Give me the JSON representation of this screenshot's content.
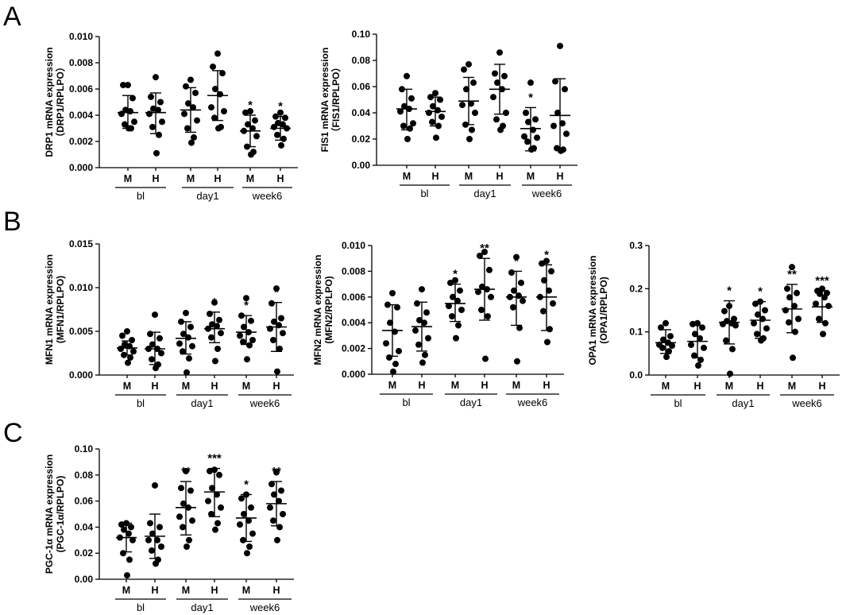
{
  "panel_letters": [
    "A",
    "B",
    "C"
  ],
  "chart_data": [
    {
      "id": "drp1",
      "panel": "A",
      "type": "scatter",
      "ylabel": [
        "DRP1 mRNA expression",
        "（DRP1/RPLPO）"
      ],
      "ylim": [
        0,
        0.01
      ],
      "yticks": [
        "0.000",
        "0.002",
        "0.004",
        "0.006",
        "0.008",
        "0.010"
      ],
      "categories": [
        "M",
        "H",
        "M",
        "H",
        "M",
        "H"
      ],
      "groups": [
        "bl",
        "day1",
        "week6"
      ],
      "means": [
        0.0042,
        0.0042,
        0.0044,
        0.0055,
        0.0028,
        0.003
      ],
      "sd_low": [
        0.003,
        0.0026,
        0.0027,
        0.0036,
        0.0016,
        0.0021
      ],
      "sd_high": [
        0.0055,
        0.0057,
        0.0061,
        0.0074,
        0.004,
        0.0039
      ],
      "significance": [
        "",
        "",
        "",
        "",
        "*",
        "*"
      ],
      "points": [
        [
          0.0063,
          0.0063,
          0.0053,
          0.0044,
          0.0043,
          0.0041,
          0.0035,
          0.0033,
          0.003,
          0.003
        ],
        [
          0.0069,
          0.0054,
          0.005,
          0.0045,
          0.0044,
          0.0041,
          0.0035,
          0.0031,
          0.0025,
          0.0011
        ],
        [
          0.0067,
          0.0062,
          0.0057,
          0.0049,
          0.0046,
          0.0041,
          0.0036,
          0.003,
          0.0023,
          0.0019
        ],
        [
          0.0087,
          0.0077,
          0.0072,
          0.006,
          0.0056,
          0.0046,
          0.0043,
          0.0038,
          0.0031,
          0.003
        ],
        [
          0.0043,
          0.0042,
          0.0036,
          0.0033,
          0.003,
          0.0028,
          0.0024,
          0.0016,
          0.0012,
          0.001
        ],
        [
          0.0042,
          0.0039,
          0.0038,
          0.0034,
          0.0033,
          0.0031,
          0.003,
          0.0025,
          0.0022,
          0.0017
        ]
      ]
    },
    {
      "id": "fis1",
      "panel": "A",
      "type": "scatter",
      "ylabel": [
        "FIS1 mRNA expression",
        "（FIS1/RPLPO）"
      ],
      "ylim": [
        0,
        0.1
      ],
      "yticks": [
        "0.00",
        "0.02",
        "0.04",
        "0.06",
        "0.08",
        "0.10"
      ],
      "categories": [
        "M",
        "H",
        "M",
        "H",
        "M",
        "H"
      ],
      "groups": [
        "bl",
        "day1",
        "week6"
      ],
      "means": [
        0.043,
        0.041,
        0.049,
        0.058,
        0.028,
        0.038
      ],
      "sd_low": [
        0.027,
        0.03,
        0.031,
        0.039,
        0.011,
        0.012
      ],
      "sd_high": [
        0.058,
        0.052,
        0.067,
        0.077,
        0.044,
        0.066
      ],
      "significance": [
        "",
        "",
        "",
        "*",
        "*",
        ""
      ],
      "points": [
        [
          0.068,
          0.058,
          0.051,
          0.045,
          0.043,
          0.041,
          0.032,
          0.03,
          0.028,
          0.02
        ],
        [
          0.055,
          0.052,
          0.05,
          0.045,
          0.042,
          0.04,
          0.037,
          0.033,
          0.03,
          0.021
        ],
        [
          0.077,
          0.073,
          0.063,
          0.058,
          0.047,
          0.046,
          0.04,
          0.031,
          0.027,
          0.02
        ],
        [
          0.086,
          0.07,
          0.068,
          0.063,
          0.058,
          0.052,
          0.04,
          0.035,
          0.03,
          0.027
        ],
        [
          0.063,
          0.04,
          0.035,
          0.033,
          0.027,
          0.022,
          0.021,
          0.018,
          0.013,
          0.012
        ],
        [
          0.091,
          0.064,
          0.058,
          0.04,
          0.032,
          0.03,
          0.024,
          0.013,
          0.012,
          0.011
        ]
      ]
    },
    {
      "id": "mfn1",
      "panel": "B",
      "type": "scatter",
      "ylabel": [
        "MFN1 mRNA expression",
        "(MFN1/RPLPO)"
      ],
      "ylim": [
        0,
        0.015
      ],
      "yticks": [
        "0.000",
        "0.005",
        "0.010",
        "0.015"
      ],
      "categories": [
        "M",
        "H",
        "M",
        "H",
        "M",
        "H"
      ],
      "groups": [
        "bl",
        "day1",
        "week6"
      ],
      "means": [
        0.0031,
        0.003,
        0.0042,
        0.0053,
        0.0049,
        0.0055
      ],
      "sd_low": [
        0.0023,
        0.0012,
        0.0024,
        0.0037,
        0.0035,
        0.0027
      ],
      "sd_high": [
        0.0039,
        0.0049,
        0.0061,
        0.0072,
        0.0068,
        0.0083
      ],
      "significance": [
        "",
        "",
        "",
        "*",
        "*",
        "*"
      ],
      "points": [
        [
          0.005,
          0.0045,
          0.004,
          0.0035,
          0.0033,
          0.003,
          0.0027,
          0.0023,
          0.002,
          0.0014
        ],
        [
          0.0069,
          0.0047,
          0.0042,
          0.0035,
          0.003,
          0.003,
          0.0025,
          0.0018,
          0.0012,
          0.0008
        ],
        [
          0.0071,
          0.0061,
          0.0055,
          0.0047,
          0.0043,
          0.0036,
          0.0033,
          0.0027,
          0.0019,
          0.0003
        ],
        [
          0.0083,
          0.007,
          0.0063,
          0.0058,
          0.0056,
          0.0053,
          0.0048,
          0.0043,
          0.003,
          0.0016
        ],
        [
          0.0088,
          0.0068,
          0.0062,
          0.0055,
          0.0049,
          0.0045,
          0.004,
          0.0038,
          0.0034,
          0.0018
        ],
        [
          0.0099,
          0.0082,
          0.0065,
          0.0061,
          0.0057,
          0.0053,
          0.0048,
          0.004,
          0.003,
          0.0004
        ]
      ]
    },
    {
      "id": "mfn2",
      "panel": "B",
      "type": "scatter",
      "ylabel": [
        "MFN2 mRNA expression",
        "(MFN2/RPLPO)"
      ],
      "ylim": [
        0,
        0.01
      ],
      "yticks": [
        "0.000",
        "0.002",
        "0.004",
        "0.006",
        "0.008",
        "0.010"
      ],
      "categories": [
        "M",
        "H",
        "M",
        "H",
        "M",
        "H"
      ],
      "groups": [
        "bl",
        "day1",
        "week6"
      ],
      "means": [
        0.0034,
        0.0037,
        0.0055,
        0.0066,
        0.006,
        0.006
      ],
      "sd_low": [
        0.0014,
        0.0018,
        0.0041,
        0.0042,
        0.0038,
        0.0034
      ],
      "sd_high": [
        0.0054,
        0.0056,
        0.007,
        0.009,
        0.008,
        0.0085
      ],
      "significance": [
        "",
        "",
        "*",
        "**",
        "*",
        "*"
      ],
      "points": [
        [
          0.0063,
          0.0054,
          0.0052,
          0.004,
          0.0033,
          0.0024,
          0.0018,
          0.0013,
          0.0008,
          0.0002
        ],
        [
          0.0066,
          0.0055,
          0.0048,
          0.0042,
          0.004,
          0.0034,
          0.0028,
          0.0023,
          0.0015,
          0.0009
        ],
        [
          0.0073,
          0.0071,
          0.0065,
          0.006,
          0.0057,
          0.0053,
          0.005,
          0.0045,
          0.0038,
          0.0028
        ],
        [
          0.0095,
          0.0092,
          0.0081,
          0.0068,
          0.0066,
          0.0064,
          0.006,
          0.005,
          0.0045,
          0.0012
        ],
        [
          0.0091,
          0.0079,
          0.0071,
          0.0065,
          0.0061,
          0.006,
          0.0057,
          0.0052,
          0.0036,
          0.001
        ],
        [
          0.0088,
          0.0086,
          0.008,
          0.0073,
          0.0065,
          0.006,
          0.0055,
          0.0049,
          0.0035,
          0.0025
        ]
      ]
    },
    {
      "id": "opa1",
      "panel": "B",
      "type": "scatter",
      "ylabel": [
        "OPA1 mRNA expression",
        "(OPA1/RPLPO)"
      ],
      "ylim": [
        0,
        0.3
      ],
      "yticks": [
        "0.0",
        "0.1",
        "0.2",
        "0.3"
      ],
      "categories": [
        "M",
        "H",
        "M",
        "H",
        "M",
        "H"
      ],
      "groups": [
        "bl",
        "day1",
        "week6"
      ],
      "means": [
        0.075,
        0.078,
        0.122,
        0.127,
        0.153,
        0.158
      ],
      "sd_low": [
        0.05,
        0.04,
        0.072,
        0.085,
        0.098,
        0.122
      ],
      "sd_high": [
        0.105,
        0.115,
        0.172,
        0.17,
        0.21,
        0.195
      ],
      "significance": [
        "",
        "",
        "*",
        "*",
        "**",
        "***"
      ],
      "points": [
        [
          0.12,
          0.11,
          0.09,
          0.082,
          0.075,
          0.07,
          0.068,
          0.063,
          0.055,
          0.042
        ],
        [
          0.12,
          0.118,
          0.11,
          0.095,
          0.085,
          0.07,
          0.063,
          0.045,
          0.035,
          0.022
        ],
        [
          0.16,
          0.148,
          0.13,
          0.125,
          0.12,
          0.118,
          0.115,
          0.08,
          0.06,
          0.003
        ],
        [
          0.17,
          0.165,
          0.15,
          0.14,
          0.13,
          0.12,
          0.108,
          0.095,
          0.085,
          0.08
        ],
        [
          0.25,
          0.2,
          0.19,
          0.18,
          0.16,
          0.15,
          0.13,
          0.122,
          0.1,
          0.04
        ],
        [
          0.2,
          0.195,
          0.19,
          0.188,
          0.18,
          0.165,
          0.16,
          0.13,
          0.12,
          0.095
        ]
      ]
    },
    {
      "id": "pgc1a",
      "panel": "C",
      "type": "scatter",
      "ylabel": [
        "PGC-1α mRNA expression",
        "(PGC-1α/RPLPO)"
      ],
      "ylim": [
        0,
        0.1
      ],
      "yticks": [
        "0.00",
        "0.02",
        "0.04",
        "0.06",
        "0.08",
        "0.10"
      ],
      "categories": [
        "M",
        "H",
        "M",
        "H",
        "M",
        "H"
      ],
      "groups": [
        "bl",
        "day1",
        "week6"
      ],
      "means": [
        0.032,
        0.033,
        0.055,
        0.067,
        0.047,
        0.058
      ],
      "sd_low": [
        0.021,
        0.016,
        0.034,
        0.048,
        0.029,
        0.041
      ],
      "sd_high": [
        0.043,
        0.05,
        0.075,
        0.085,
        0.065,
        0.075
      ],
      "significance": [
        "",
        "",
        "**",
        "***",
        "*",
        "**"
      ],
      "points": [
        [
          0.043,
          0.042,
          0.04,
          0.038,
          0.035,
          0.032,
          0.03,
          0.02,
          0.015,
          0.003
        ],
        [
          0.072,
          0.043,
          0.04,
          0.035,
          0.03,
          0.03,
          0.025,
          0.022,
          0.015,
          0.012
        ],
        [
          0.083,
          0.07,
          0.068,
          0.058,
          0.055,
          0.048,
          0.045,
          0.04,
          0.03,
          0.025
        ],
        [
          0.084,
          0.083,
          0.08,
          0.07,
          0.065,
          0.06,
          0.055,
          0.05,
          0.043,
          0.038
        ],
        [
          0.065,
          0.062,
          0.055,
          0.05,
          0.045,
          0.042,
          0.035,
          0.03,
          0.025,
          0.02
        ],
        [
          0.082,
          0.073,
          0.068,
          0.065,
          0.06,
          0.055,
          0.05,
          0.045,
          0.04,
          0.03
        ]
      ]
    }
  ]
}
